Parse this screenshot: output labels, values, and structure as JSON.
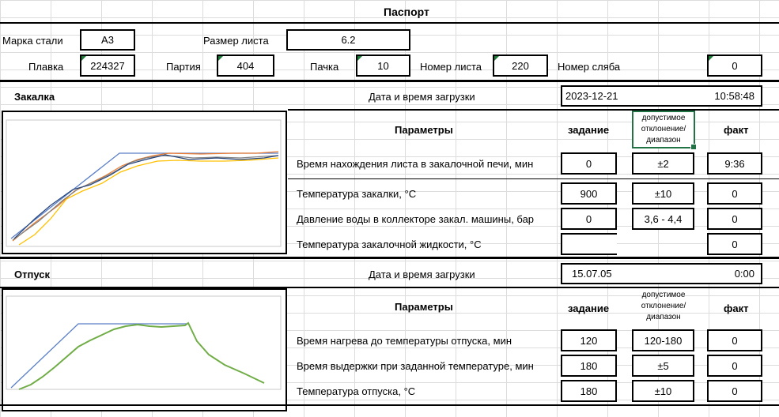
{
  "title": "Паспорт",
  "header": {
    "steel_grade_label": "Марка стали",
    "steel_grade": "А3",
    "sheet_size_label": "Размер листа",
    "sheet_size": "6.2",
    "melt_label": "Плавка",
    "melt": "224327",
    "batch_label": "Партия",
    "batch": "404",
    "pack_label": "Пачка",
    "pack": "10",
    "sheet_no_label": "Номер листа",
    "sheet_no": "220",
    "slab_no_label": "Номер сляба",
    "slab_no": "0"
  },
  "quench": {
    "title": "Закалка",
    "load_label": "Дата и время загрузки",
    "load_date": "2023-12-21",
    "load_time": "10:58:48",
    "params_header": "Параметры",
    "target_header": "задание",
    "tolerance_header": "допустимое отклонение/ диапазон",
    "actual_header": "факт",
    "rows": [
      {
        "name": "Время нахождения листа в закалочной печи, мин",
        "target": "0",
        "tolerance": "±2",
        "actual": "9:36"
      },
      {
        "name": "Температура закалки, °С",
        "target": "900",
        "tolerance": "±10",
        "actual": "0"
      },
      {
        "name": "Давление воды в коллекторе закал. машины, бар",
        "target": "0",
        "tolerance": "3,6 - 4,4",
        "actual": "0"
      },
      {
        "name": "Температура закалочной жидкости, °С",
        "target": "",
        "tolerance": "",
        "actual": "0"
      }
    ]
  },
  "tempering": {
    "title": "Отпуск",
    "load_label": "Дата и время загрузки",
    "load_date": "15.07.05",
    "load_time": "0:00",
    "params_header": "Параметры",
    "target_header": "задание",
    "tolerance_header": "допустимое отклонение/ диапазон",
    "actual_header": "факт",
    "rows": [
      {
        "name": "Время нагрева до температуры отпуска, мин",
        "target": "120",
        "tolerance": "120-180",
        "actual": "0"
      },
      {
        "name": "Время выдержки при заданной температуре, мин",
        "target": "180",
        "tolerance": "±5",
        "actual": "0"
      },
      {
        "name": "Температура отпуска, °С",
        "target": "180",
        "tolerance": "±10",
        "actual": "0"
      }
    ]
  },
  "colors": {
    "line_blue": "#5b7fc7",
    "line_orange": "#ed7d31",
    "line_gray": "#7f7f7f",
    "line_yellow": "#ffc000",
    "line_navy": "#264478",
    "line_green": "#70ad47",
    "selection_green": "#217346"
  }
}
